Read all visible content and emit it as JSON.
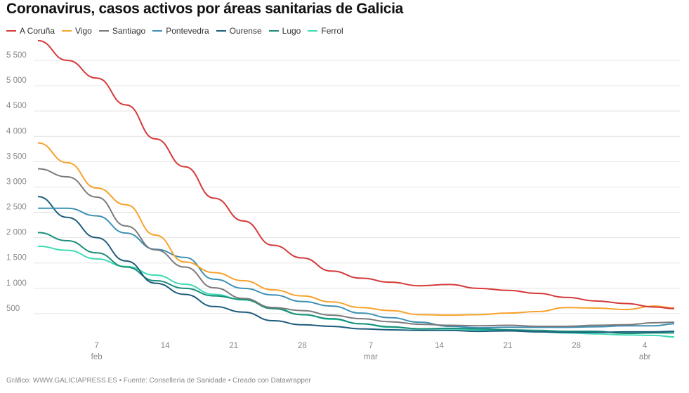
{
  "title": "Coronavirus, casos activos por áreas sanitarias de Galicia",
  "footer": "Gráfico: WWW.GALICIAPRESS.ES • Fuente: Consellería de Sanidade • Creado con Datawrapper",
  "chart_data": {
    "type": "line",
    "title": "Coronavirus, casos activos por áreas sanitarias de Galicia",
    "xlabel": "",
    "ylabel": "",
    "legend_position": "top-left",
    "grid": true,
    "ylim": [
      0,
      5900
    ],
    "yticks": [
      500,
      1000,
      1500,
      2000,
      2500,
      3000,
      3500,
      4000,
      4500,
      5000,
      5500
    ],
    "ytick_labels": [
      "500",
      "1 000",
      "1 500",
      "2 000",
      "2 500",
      "3 000",
      "3 500",
      "4 000",
      "4 500",
      "5 000",
      "5 500"
    ],
    "xlim": [
      "2021-02-01",
      "2021-04-07"
    ],
    "xticks": [
      {
        "date": "2021-02-07",
        "label": "7",
        "month": "feb"
      },
      {
        "date": "2021-02-14",
        "label": "14",
        "month": ""
      },
      {
        "date": "2021-02-21",
        "label": "21",
        "month": ""
      },
      {
        "date": "2021-02-28",
        "label": "28",
        "month": ""
      },
      {
        "date": "2021-03-07",
        "label": "7",
        "month": "mar"
      },
      {
        "date": "2021-03-14",
        "label": "14",
        "month": ""
      },
      {
        "date": "2021-03-21",
        "label": "21",
        "month": ""
      },
      {
        "date": "2021-03-28",
        "label": "28",
        "month": ""
      },
      {
        "date": "2021-04-04",
        "label": "4",
        "month": "abr"
      }
    ],
    "x": [
      "2021-02-01",
      "2021-02-04",
      "2021-02-07",
      "2021-02-10",
      "2021-02-13",
      "2021-02-16",
      "2021-02-19",
      "2021-02-22",
      "2021-02-25",
      "2021-02-28",
      "2021-03-03",
      "2021-03-06",
      "2021-03-09",
      "2021-03-12",
      "2021-03-15",
      "2021-03-18",
      "2021-03-21",
      "2021-03-24",
      "2021-03-27",
      "2021-03-30",
      "2021-04-02",
      "2021-04-05",
      "2021-04-07"
    ],
    "series": [
      {
        "name": "A Coruña",
        "color": "#d63a3a",
        "values": [
          5890,
          5500,
          5150,
          4620,
          3950,
          3400,
          2780,
          2330,
          1850,
          1600,
          1340,
          1200,
          1120,
          1050,
          1075,
          1000,
          960,
          900,
          820,
          750,
          700,
          630,
          600
        ]
      },
      {
        "name": "Vigo",
        "color": "#f8a22c",
        "values": [
          3870,
          3480,
          2980,
          2650,
          2050,
          1520,
          1310,
          1150,
          970,
          850,
          730,
          620,
          560,
          480,
          470,
          480,
          510,
          540,
          620,
          610,
          580,
          650,
          610
        ]
      },
      {
        "name": "Santiago",
        "color": "#7a7a7a",
        "values": [
          3360,
          3200,
          2800,
          2230,
          1760,
          1420,
          1010,
          800,
          620,
          560,
          470,
          400,
          340,
          290,
          270,
          260,
          270,
          250,
          250,
          270,
          280,
          320,
          330
        ]
      },
      {
        "name": "Pontevedra",
        "color": "#3e90b4",
        "values": [
          2580,
          2580,
          2430,
          2090,
          1770,
          1610,
          1180,
          1000,
          870,
          740,
          650,
          510,
          420,
          330,
          250,
          220,
          230,
          230,
          230,
          240,
          260,
          260,
          300
        ]
      },
      {
        "name": "Ourense",
        "color": "#1d5c7c",
        "values": [
          2810,
          2400,
          2000,
          1540,
          1100,
          880,
          640,
          530,
          360,
          280,
          250,
          200,
          180,
          170,
          170,
          150,
          160,
          140,
          130,
          130,
          140,
          140,
          150
        ]
      },
      {
        "name": "Lugo",
        "color": "#1a8f7a",
        "values": [
          2100,
          1940,
          1700,
          1420,
          1150,
          1000,
          850,
          780,
          600,
          480,
          400,
          300,
          240,
          200,
          210,
          200,
          180,
          170,
          150,
          150,
          110,
          120,
          120
        ]
      },
      {
        "name": "Ferrol",
        "color": "#3ddbb3",
        "values": [
          1830,
          1750,
          1580,
          1430,
          1260,
          1080,
          880,
          770,
          620,
          480,
          390,
          300,
          230,
          200,
          200,
          180,
          170,
          140,
          120,
          100,
          80,
          70,
          40
        ]
      }
    ]
  }
}
